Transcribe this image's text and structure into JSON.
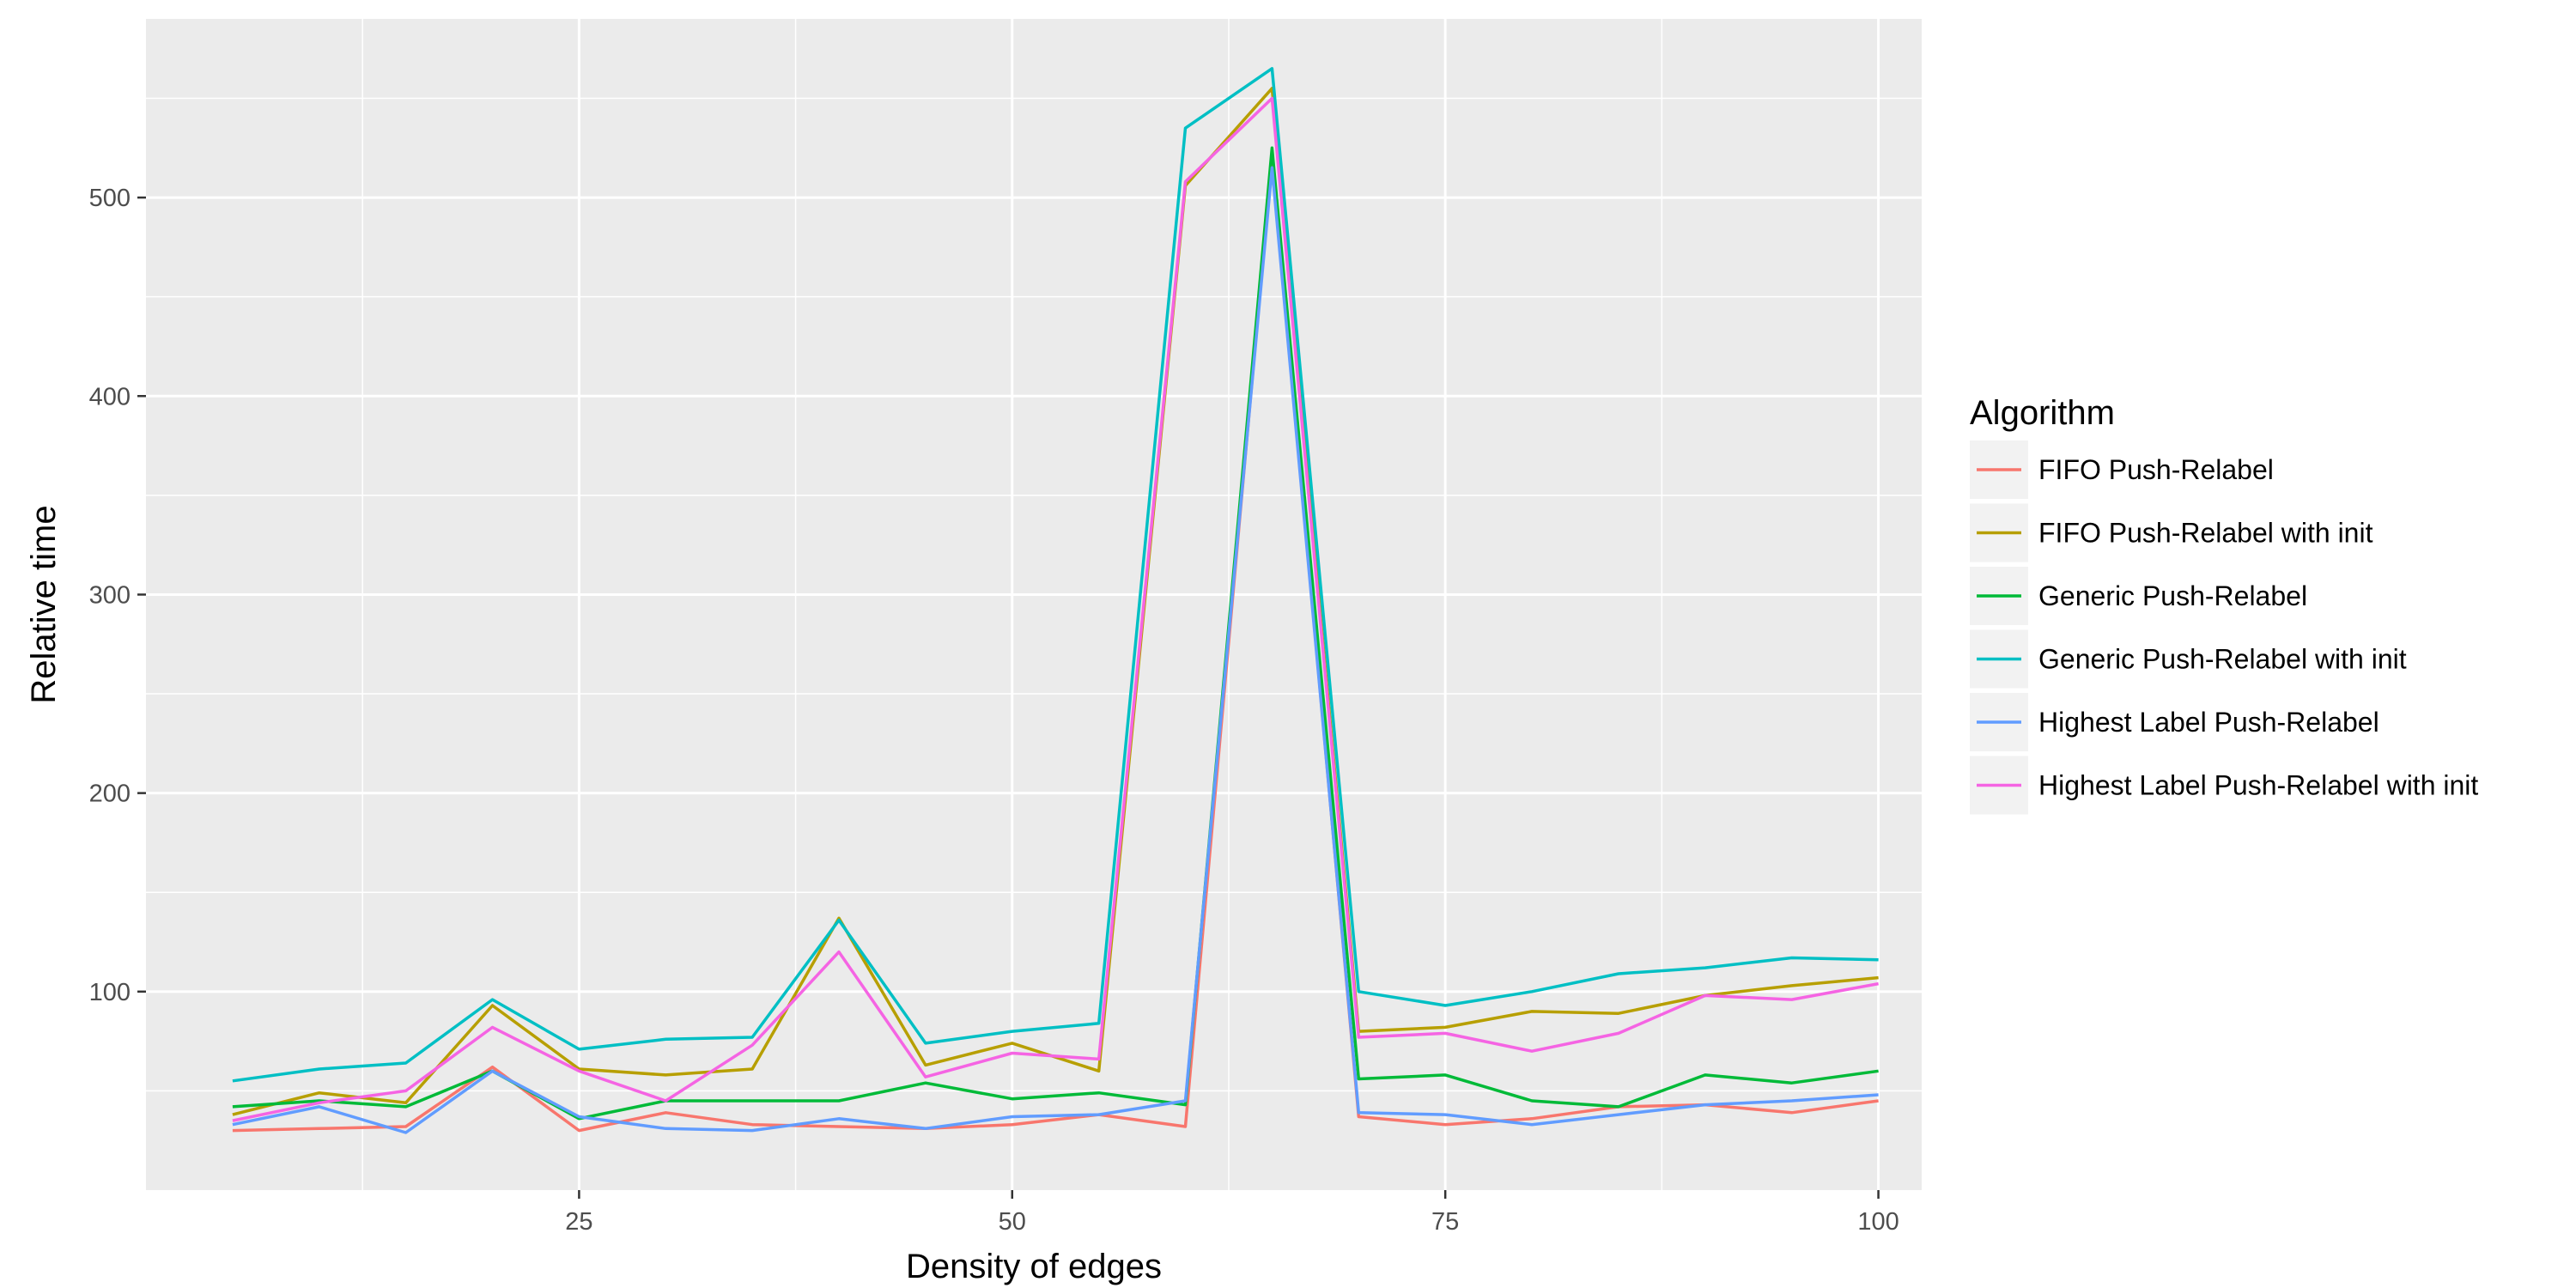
{
  "chart_data": {
    "type": "line",
    "xlabel": "Density of edges",
    "ylabel": "Relative time",
    "xlim": [
      0,
      102.5
    ],
    "ylim": [
      0,
      590
    ],
    "x_ticks": [
      25,
      50,
      75,
      100
    ],
    "y_ticks": [
      100,
      200,
      300,
      400,
      500
    ],
    "grid": true,
    "legend_position": "right",
    "legend_title": "Algorithm",
    "x": [
      5,
      10,
      15,
      20,
      25,
      30,
      35,
      40,
      45,
      50,
      55,
      60,
      65,
      70,
      75,
      80,
      85,
      90,
      95,
      100
    ],
    "series": [
      {
        "name": "FIFO Push-Relabel",
        "color": "#F8766D",
        "values": [
          30,
          31,
          32,
          62,
          30,
          39,
          33,
          32,
          31,
          33,
          38,
          32,
          520,
          37,
          33,
          36,
          42,
          43,
          39,
          45
        ]
      },
      {
        "name": "FIFO Push-Relabel with init",
        "color": "#B79F00",
        "values": [
          38,
          49,
          44,
          93,
          61,
          58,
          61,
          137,
          63,
          74,
          60,
          506,
          555,
          80,
          82,
          90,
          89,
          98,
          103,
          107
        ]
      },
      {
        "name": "Generic Push-Relabel",
        "color": "#00BA38",
        "values": [
          42,
          45,
          42,
          60,
          36,
          45,
          45,
          45,
          54,
          46,
          49,
          43,
          525,
          56,
          58,
          45,
          42,
          58,
          54,
          60
        ]
      },
      {
        "name": "Generic Push-Relabel with init",
        "color": "#00BFC4",
        "values": [
          55,
          61,
          64,
          96,
          71,
          76,
          77,
          136,
          74,
          80,
          84,
          535,
          565,
          100,
          93,
          100,
          109,
          112,
          117,
          116
        ]
      },
      {
        "name": "Highest Label Push-Relabel",
        "color": "#619CFF",
        "values": [
          33,
          42,
          29,
          60,
          37,
          31,
          30,
          36,
          31,
          37,
          38,
          45,
          515,
          39,
          38,
          33,
          38,
          43,
          45,
          48
        ]
      },
      {
        "name": "Highest Label Push-Relabel with init",
        "color": "#F564E3",
        "values": [
          35,
          44,
          50,
          82,
          60,
          45,
          73,
          120,
          57,
          69,
          66,
          508,
          550,
          77,
          79,
          70,
          79,
          98,
          96,
          104
        ]
      }
    ]
  }
}
